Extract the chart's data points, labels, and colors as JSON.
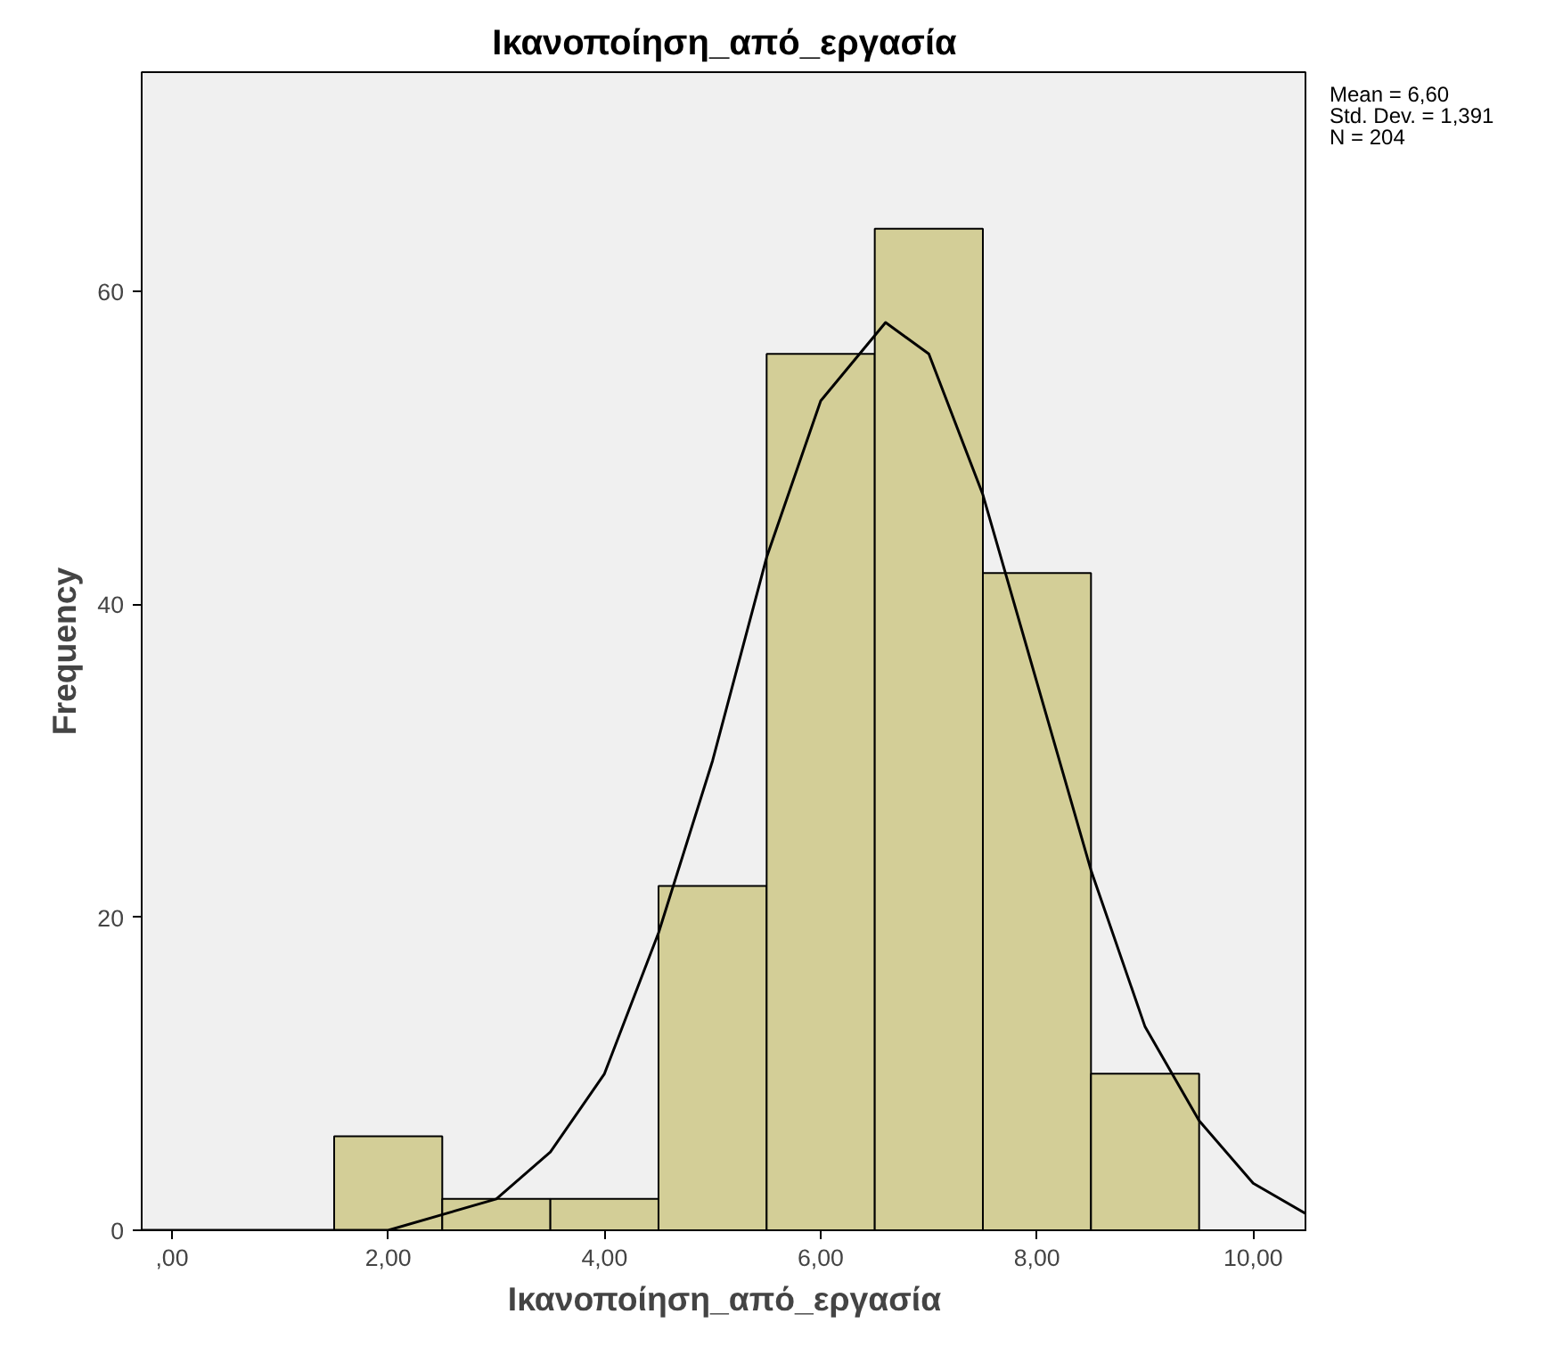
{
  "chart_data": {
    "type": "histogram",
    "title": "Ικανοποίηση_από_εργασία",
    "xlabel": "Ικανοποίηση_από_εργασία",
    "ylabel": "Frequency",
    "bins": [
      1.5,
      2.5,
      3.5,
      4.5,
      5.5,
      6.5,
      7.5,
      8.5,
      9.5
    ],
    "values": [
      6,
      2,
      2,
      22,
      56,
      64,
      42,
      10
    ],
    "color": "#d3ce97",
    "series": [
      {
        "type": "line",
        "color": "#000000",
        "x": [
          -0.28,
          0,
          1,
          2,
          3,
          3.5,
          4,
          4.5,
          5,
          5.5,
          6,
          6.6,
          7,
          7.5,
          8,
          8.5,
          9,
          9.5,
          10,
          10.5
        ],
        "values": [
          0,
          0,
          0,
          0,
          2,
          5,
          10,
          19,
          30,
          43,
          53,
          58,
          56,
          47,
          35,
          23,
          13,
          7,
          3,
          1
        ]
      }
    ],
    "xlim": [
      -0.28,
      10.5
    ],
    "ylim": [
      0,
      74
    ],
    "xticks": [
      {
        "value": 0,
        "label": ",00"
      },
      {
        "value": 2,
        "label": "2,00"
      },
      {
        "value": 4,
        "label": "4,00"
      },
      {
        "value": 6,
        "label": "6,00"
      },
      {
        "value": 8,
        "label": "8,00"
      },
      {
        "value": 10,
        "label": "10,00"
      }
    ],
    "yticks": [
      0,
      20,
      40,
      60
    ],
    "annotations": [
      "Mean = 6,60",
      "Std. Dev. = 1,391",
      "N = 204"
    ],
    "grid": false
  }
}
